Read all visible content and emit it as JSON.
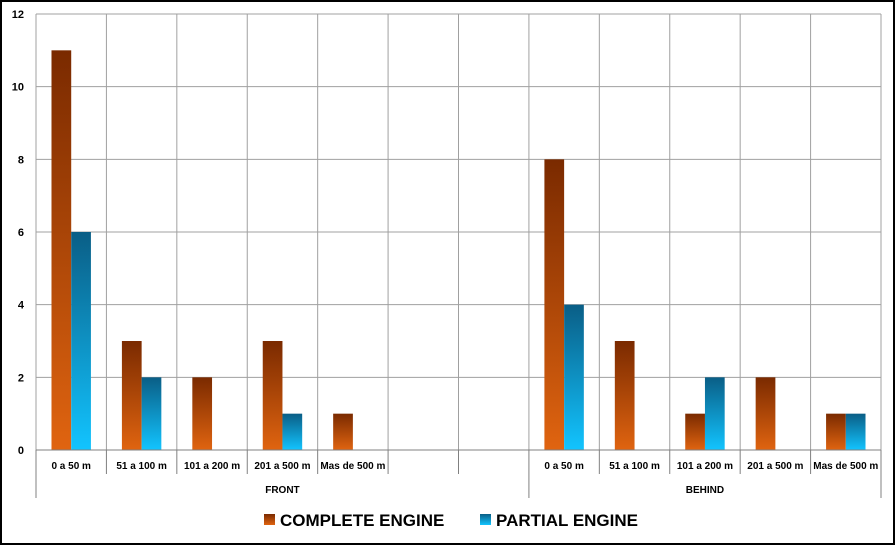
{
  "chart_data": {
    "type": "bar",
    "title": "",
    "xlabel": "",
    "ylabel": "",
    "ylim": [
      0,
      12
    ],
    "yticks": [
      0,
      2,
      4,
      6,
      8,
      10,
      12
    ],
    "grid": true,
    "legend_position": "bottom",
    "groups": [
      {
        "label": "FRONT",
        "categories": [
          "0 a 50 m",
          "51 a 100 m",
          "101 a 200 m",
          "201 a 500 m",
          "Mas de 500 m",
          "",
          ""
        ]
      },
      {
        "label": "BEHIND",
        "categories": [
          "0 a 50 m",
          "51 a 100 m",
          "101 a 200 m",
          "201 a 500 m",
          "Mas de 500 m"
        ]
      }
    ],
    "series": [
      {
        "name": "COMPLETE ENGINE",
        "color": "#C0500F",
        "values": [
          11,
          3,
          2,
          3,
          1,
          0,
          0,
          8,
          3,
          1,
          2,
          1
        ]
      },
      {
        "name": "PARTIAL ENGINE",
        "color": "#12A6E2",
        "values": [
          6,
          2,
          0,
          1,
          0,
          0,
          0,
          4,
          0,
          2,
          0,
          1
        ]
      }
    ]
  }
}
